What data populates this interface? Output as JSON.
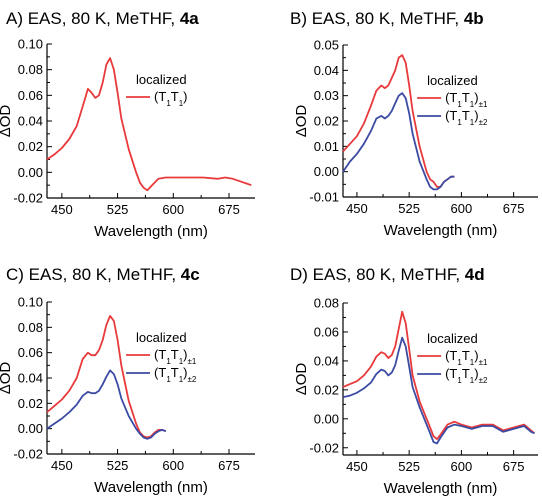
{
  "chart_data": [
    {
      "type": "line",
      "title": "A) EAS, 80 K, MeTHF, ",
      "title_bold": "4a",
      "xlabel": "Wavelength (nm)",
      "ylabel": "ΔOD",
      "xlim": [
        430,
        710
      ],
      "ylim": [
        -0.02,
        0.1
      ],
      "xticks": [
        450,
        525,
        600,
        675
      ],
      "yticks": [
        -0.02,
        0.0,
        0.02,
        0.04,
        0.06,
        0.08,
        0.1
      ],
      "ytick_labels": [
        "-0.02",
        "0.00",
        "0.02",
        "0.04",
        "0.06",
        "0.08",
        "0.10"
      ],
      "legend_title": "localized",
      "legend_placement": "top-right",
      "series": [
        {
          "name": "(T1T1)",
          "name_main": "(T",
          "name_sub1": "1",
          "name_mid": "T",
          "name_sub2": "1",
          "name_end": ")",
          "color": "#e8393b",
          "x": [
            430,
            440,
            450,
            460,
            470,
            480,
            485,
            490,
            495,
            500,
            505,
            510,
            515,
            520,
            525,
            530,
            540,
            550,
            555,
            560,
            565,
            570,
            580,
            590,
            600,
            620,
            640,
            660,
            670,
            680,
            690,
            700,
            705
          ],
          "y": [
            0.01,
            0.014,
            0.019,
            0.026,
            0.036,
            0.055,
            0.065,
            0.062,
            0.058,
            0.06,
            0.07,
            0.084,
            0.089,
            0.08,
            0.062,
            0.042,
            0.018,
            0.0,
            -0.008,
            -0.012,
            -0.014,
            -0.011,
            -0.005,
            -0.004,
            -0.004,
            -0.004,
            -0.004,
            -0.005,
            -0.004,
            -0.005,
            -0.007,
            -0.009,
            -0.01
          ]
        }
      ]
    },
    {
      "type": "line",
      "title": "B) EAS, 80 K, MeTHF, ",
      "title_bold": "4b",
      "xlabel": "Wavelength (nm)",
      "ylabel": "ΔOD",
      "xlim": [
        430,
        710
      ],
      "ylim": [
        -0.01,
        0.05
      ],
      "xticks": [
        450,
        525,
        600,
        675
      ],
      "yticks": [
        -0.01,
        0.0,
        0.01,
        0.02,
        0.03,
        0.04,
        0.05
      ],
      "ytick_labels": [
        "-0.01",
        "0.00",
        "0.01",
        "0.02",
        "0.03",
        "0.04",
        "0.05"
      ],
      "legend_title": "localized",
      "legend_placement": "top-right",
      "series": [
        {
          "name": "(T1T1)±1",
          "name_main": "(T",
          "name_sub1": "1",
          "name_mid": "T",
          "name_sub2": "1",
          "name_end": ")",
          "name_post": "±1",
          "color": "#e8393b",
          "x": [
            430,
            440,
            450,
            460,
            470,
            478,
            485,
            490,
            495,
            500,
            505,
            510,
            515,
            520,
            525,
            530,
            540,
            550,
            555,
            560,
            565,
            570,
            575,
            580,
            585,
            590
          ],
          "y": [
            0.008,
            0.011,
            0.014,
            0.019,
            0.026,
            0.032,
            0.034,
            0.033,
            0.034,
            0.037,
            0.04,
            0.045,
            0.046,
            0.043,
            0.034,
            0.024,
            0.01,
            0.0,
            -0.003,
            -0.004,
            -0.006,
            -0.006,
            -0.004,
            -0.003,
            -0.002,
            -0.002
          ]
        },
        {
          "name": "(T1T1)±2",
          "name_main": "(T",
          "name_sub1": "1",
          "name_mid": "T",
          "name_sub2": "1",
          "name_end": ")",
          "name_post": "±2",
          "color": "#3b4ba3",
          "x": [
            430,
            440,
            450,
            460,
            470,
            478,
            485,
            490,
            495,
            500,
            505,
            510,
            515,
            520,
            525,
            530,
            540,
            550,
            555,
            560,
            565,
            570,
            575,
            580,
            585,
            590
          ],
          "y": [
            0.0,
            0.004,
            0.007,
            0.011,
            0.016,
            0.021,
            0.022,
            0.021,
            0.022,
            0.024,
            0.027,
            0.03,
            0.031,
            0.029,
            0.023,
            0.015,
            0.004,
            -0.003,
            -0.006,
            -0.007,
            -0.007,
            -0.006,
            -0.004,
            -0.003,
            -0.002,
            -0.002
          ]
        }
      ]
    },
    {
      "type": "line",
      "title": "C) EAS, 80 K, MeTHF, ",
      "title_bold": "4c",
      "xlabel": "Wavelength (nm)",
      "ylabel": "ΔOD",
      "xlim": [
        430,
        710
      ],
      "ylim": [
        -0.02,
        0.1
      ],
      "xticks": [
        450,
        525,
        600,
        675
      ],
      "yticks": [
        -0.02,
        0.0,
        0.02,
        0.04,
        0.06,
        0.08,
        0.1
      ],
      "ytick_labels": [
        "-0.02",
        "0.00",
        "0.02",
        "0.04",
        "0.06",
        "0.08",
        "0.10"
      ],
      "legend_title": "localized",
      "legend_placement": "top-right",
      "series": [
        {
          "name": "(T1T1)±1",
          "name_main": "(T",
          "name_sub1": "1",
          "name_mid": "T",
          "name_sub2": "1",
          "name_end": ")",
          "name_post": "±1",
          "color": "#e8393b",
          "x": [
            430,
            440,
            450,
            460,
            470,
            478,
            485,
            490,
            495,
            500,
            505,
            510,
            515,
            520,
            525,
            530,
            540,
            550,
            555,
            560,
            565,
            570,
            575,
            580,
            585,
            590
          ],
          "y": [
            0.013,
            0.018,
            0.023,
            0.03,
            0.04,
            0.055,
            0.06,
            0.058,
            0.058,
            0.062,
            0.07,
            0.082,
            0.089,
            0.085,
            0.07,
            0.05,
            0.022,
            0.004,
            -0.003,
            -0.006,
            -0.007,
            -0.006,
            -0.003,
            -0.001,
            -0.001,
            -0.002
          ]
        },
        {
          "name": "(T1T1)±2",
          "name_main": "(T",
          "name_sub1": "1",
          "name_mid": "T",
          "name_sub2": "1",
          "name_end": ")",
          "name_post": "±2",
          "color": "#3b4ba3",
          "x": [
            430,
            440,
            450,
            460,
            470,
            478,
            485,
            490,
            495,
            500,
            505,
            510,
            515,
            520,
            525,
            530,
            540,
            550,
            555,
            560,
            565,
            570,
            575,
            580,
            585,
            590
          ],
          "y": [
            0.0,
            0.004,
            0.008,
            0.013,
            0.019,
            0.026,
            0.029,
            0.028,
            0.028,
            0.03,
            0.035,
            0.041,
            0.046,
            0.043,
            0.035,
            0.024,
            0.01,
            0.0,
            -0.004,
            -0.007,
            -0.008,
            -0.007,
            -0.004,
            -0.002,
            -0.001,
            -0.002
          ]
        }
      ]
    },
    {
      "type": "line",
      "title": "D) EAS, 80 K, MeTHF, ",
      "title_bold": "4d",
      "xlabel": "Wavelength (nm)",
      "ylabel": "ΔOD",
      "xlim": [
        430,
        710
      ],
      "ylim": [
        -0.025,
        0.08
      ],
      "xticks": [
        450,
        525,
        600,
        675
      ],
      "yticks": [
        -0.02,
        0.0,
        0.02,
        0.04,
        0.06,
        0.08
      ],
      "ytick_labels": [
        "-0.02",
        "0.00",
        "0.02",
        "0.04",
        "0.06",
        "0.08"
      ],
      "legend_title": "localized",
      "legend_placement": "top-right",
      "series": [
        {
          "name": "(T1T1)±1",
          "name_main": "(T",
          "name_sub1": "1",
          "name_mid": "T",
          "name_sub2": "1",
          "name_end": ")",
          "name_post": "±1",
          "color": "#e8393b",
          "x": [
            430,
            440,
            450,
            460,
            470,
            478,
            485,
            490,
            495,
            500,
            505,
            510,
            515,
            520,
            525,
            530,
            540,
            550,
            555,
            560,
            565,
            570,
            580,
            590,
            600,
            615,
            630,
            645,
            660,
            675,
            690,
            700,
            705
          ],
          "y": [
            0.022,
            0.024,
            0.026,
            0.03,
            0.036,
            0.043,
            0.046,
            0.045,
            0.042,
            0.044,
            0.05,
            0.062,
            0.074,
            0.066,
            0.048,
            0.03,
            0.012,
            0.0,
            -0.006,
            -0.012,
            -0.014,
            -0.011,
            -0.004,
            -0.002,
            -0.004,
            -0.006,
            -0.004,
            -0.004,
            -0.008,
            -0.006,
            -0.004,
            -0.008,
            -0.01
          ]
        },
        {
          "name": "(T1T1)±2",
          "name_main": "(T",
          "name_sub1": "1",
          "name_mid": "T",
          "name_sub2": "1",
          "name_end": ")",
          "name_post": "±2",
          "color": "#3b4ba3",
          "x": [
            430,
            440,
            450,
            460,
            470,
            478,
            485,
            490,
            495,
            500,
            505,
            510,
            515,
            520,
            525,
            530,
            540,
            550,
            555,
            560,
            565,
            570,
            580,
            590,
            600,
            615,
            630,
            645,
            660,
            675,
            690,
            700,
            705
          ],
          "y": [
            0.015,
            0.016,
            0.018,
            0.021,
            0.025,
            0.031,
            0.034,
            0.033,
            0.03,
            0.032,
            0.037,
            0.047,
            0.056,
            0.05,
            0.036,
            0.022,
            0.008,
            -0.004,
            -0.01,
            -0.016,
            -0.017,
            -0.013,
            -0.006,
            -0.004,
            -0.005,
            -0.007,
            -0.005,
            -0.005,
            -0.009,
            -0.007,
            -0.005,
            -0.009,
            -0.01
          ]
        }
      ]
    }
  ]
}
